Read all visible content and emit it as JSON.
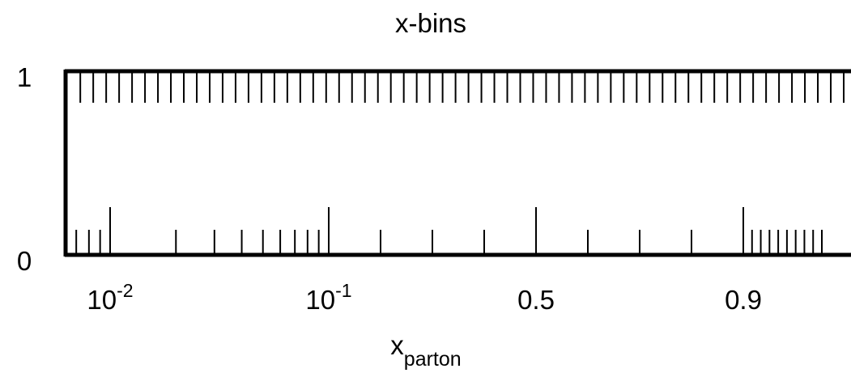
{
  "chart_data": {
    "type": "scatter",
    "title": "x-bins",
    "xlabel": {
      "base": "x",
      "subscript": "parton"
    },
    "x_scale": "piecewise: log for x < 0.1, linear 0.1–0.9, stretched above 0.9",
    "y_ticks": [
      {
        "value": 0,
        "label": "0"
      },
      {
        "value": 1,
        "label": "1"
      }
    ],
    "x_tick_labels": [
      {
        "value": 0.01,
        "base": "10",
        "exp": "-2"
      },
      {
        "value": 0.1,
        "base": "10",
        "exp": "-1"
      },
      {
        "value": 0.5,
        "base": "0.5",
        "exp": ""
      },
      {
        "value": 0.9,
        "base": "0.9",
        "exp": ""
      }
    ],
    "series": [
      {
        "name": "",
        "y": 0,
        "x": [
          0.007,
          0.008,
          0.009,
          0.01,
          0.02,
          0.03,
          0.04,
          0.05,
          0.06,
          0.07,
          0.08,
          0.09,
          0.1,
          0.2,
          0.3,
          0.4,
          0.5,
          0.6,
          0.7,
          0.8,
          0.9,
          0.91,
          0.92,
          0.93,
          0.94,
          0.95,
          0.96,
          0.97,
          0.98,
          0.99
        ],
        "major_x": [
          0.01,
          0.1,
          0.5,
          0.9
        ]
      },
      {
        "name": "",
        "y": 1,
        "x_min": 0.007,
        "x_max": 0.99,
        "n_bins": 60
      }
    ],
    "colors": {
      "axis": "#000000",
      "marks": "#000000",
      "background": "#ffffff"
    }
  }
}
